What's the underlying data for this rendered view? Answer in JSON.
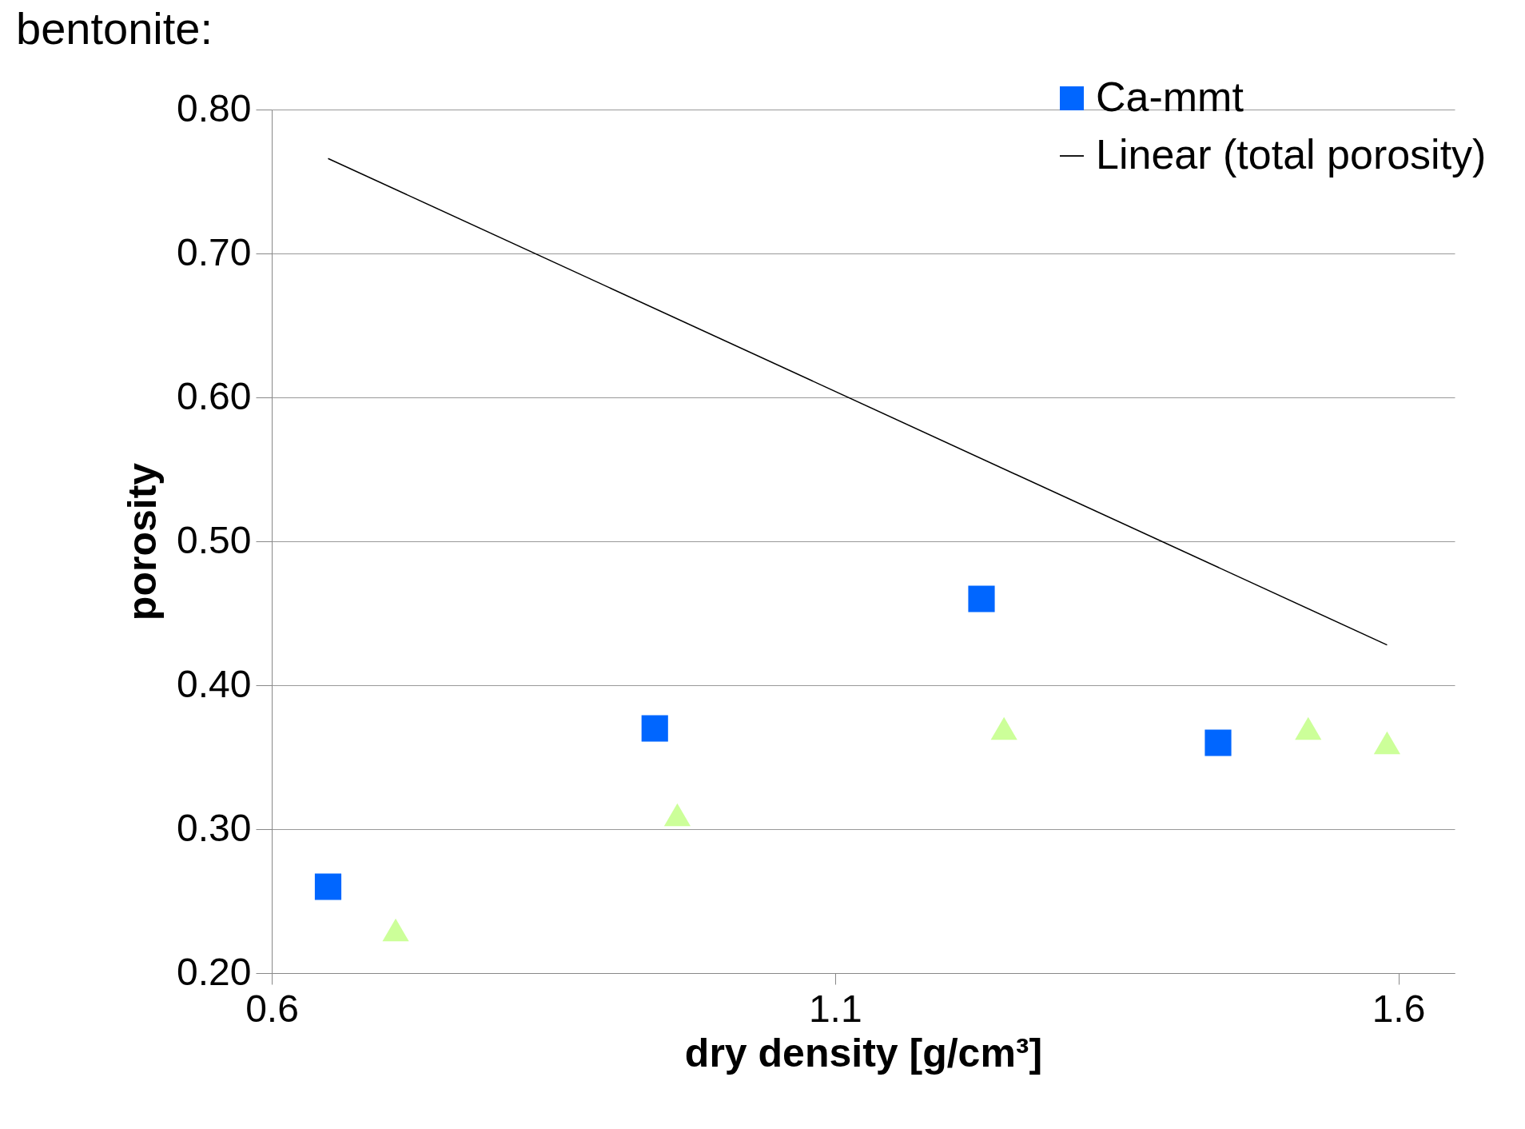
{
  "chart_data": {
    "type": "scatter",
    "title": "bentonite:",
    "xlabel": "dry density [g/cm³]",
    "ylabel": "porosity",
    "xlim": [
      0.6,
      1.65
    ],
    "xticks": [
      0.6,
      1.1,
      1.6
    ],
    "ylim": [
      0.2,
      0.8
    ],
    "yticks": [
      {
        "value": 0.2,
        "label": "0.20"
      },
      {
        "value": 0.3,
        "label": "0.30"
      },
      {
        "value": 0.4,
        "label": "0.40"
      },
      {
        "value": 0.5,
        "label": "0.50"
      },
      {
        "value": 0.6,
        "label": "0.60"
      },
      {
        "value": 0.7,
        "label": "0.70"
      },
      {
        "value": 0.8,
        "label": "0.80"
      }
    ],
    "grid": "y",
    "legend": "top right",
    "series": [
      {
        "name": "Ca-mmt",
        "marker": "square",
        "color": "#0066ff",
        "x": [
          0.65,
          0.94,
          1.23,
          1.44
        ],
        "values": [
          0.26,
          0.37,
          0.46,
          0.36
        ]
      },
      {
        "marker": "triangle",
        "color": "#ccff99",
        "x": [
          0.71,
          0.96,
          1.25,
          1.52,
          1.59
        ],
        "values": [
          0.23,
          0.31,
          0.37,
          0.37,
          0.36
        ]
      },
      {
        "name": "Linear (total porosity)",
        "type": "line",
        "marker": "none",
        "color": "#000000",
        "x": [
          0.65,
          1.59
        ],
        "values": [
          0.766,
          0.428
        ]
      }
    ]
  }
}
